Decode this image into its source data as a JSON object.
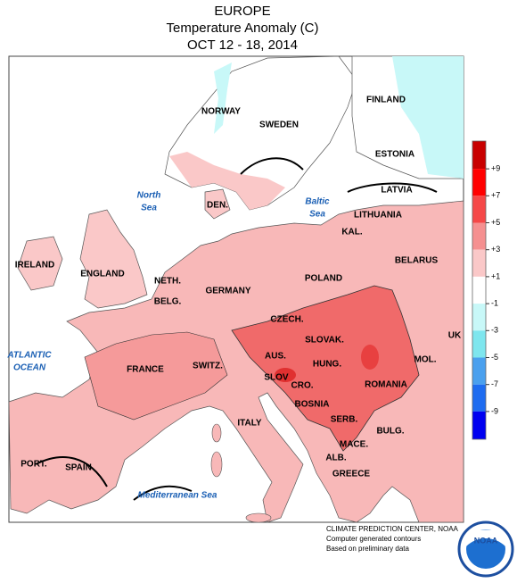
{
  "header": {
    "title": "EUROPE",
    "subtitle": "Temperature Anomaly (C)",
    "dates": "OCT 12 - 18, 2014"
  },
  "map": {
    "labels": [
      "NORWAY",
      "SWEDEN",
      "FINLAND",
      "ESTONIA",
      "LATVIA",
      "LITHUANIA",
      "KAL.",
      "BELARUS",
      "POLAND",
      "DEN.",
      "IRELAND",
      "ENGLAND",
      "NETH.",
      "BELG.",
      "GERMANY",
      "CZECH.",
      "SLOVAK.",
      "AUS.",
      "HUNG.",
      "SLOV",
      "CRO.",
      "BOSNIA",
      "ROMANIA",
      "MOL.",
      "SERB.",
      "BULG.",
      "MACE.",
      "ALB.",
      "GREECE",
      "ITALY",
      "SWITZ.",
      "FRANCE",
      "SPAIN",
      "PORT.",
      "UK"
    ],
    "water": [
      "North",
      "Sea",
      "Baltic",
      "Sea",
      "ATLANTIC",
      "OCEAN",
      "Mediterranean Sea"
    ]
  },
  "legend": {
    "colors": [
      "#c80000",
      "#ff0000",
      "#f54848",
      "#f59090",
      "#fac8c8",
      "#ffffff",
      "#c8f8f8",
      "#7ee6ee",
      "#4aa0ee",
      "#1e6cf0",
      "#0000f0"
    ],
    "ticks": [
      {
        "value": 9,
        "label": "+9"
      },
      {
        "value": 7,
        "label": "+7"
      },
      {
        "value": 5,
        "label": "+5"
      },
      {
        "value": 3,
        "label": "+3"
      },
      {
        "value": 1,
        "label": "+1"
      },
      -1,
      -3,
      -5,
      -7,
      -9
    ]
  },
  "credits": {
    "center": "CLIMATE PREDICTION CENTER, NOAA",
    "line1": "Computer generated contours",
    "line2": "Based on preliminary data",
    "logo": "NOAA"
  }
}
